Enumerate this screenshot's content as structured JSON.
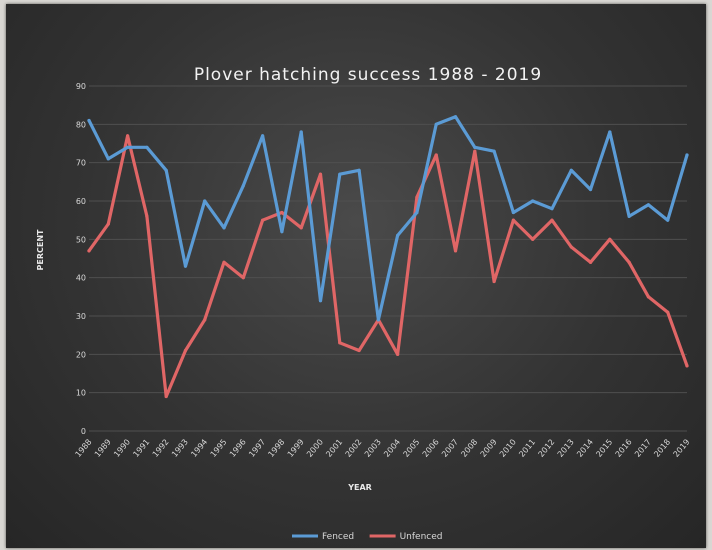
{
  "chart_data": {
    "type": "line",
    "title": "Plover hatching success 1988 - 2019",
    "xlabel": "YEAR",
    "ylabel": "PERCENT",
    "ylim": [
      0,
      90
    ],
    "yticks": [
      0,
      10,
      20,
      30,
      40,
      50,
      60,
      70,
      80,
      90
    ],
    "grid": true,
    "legend_position": "bottom",
    "categories": [
      "1988",
      "1989",
      "1990",
      "1991",
      "1992",
      "1993",
      "1994",
      "1995",
      "1996",
      "1997",
      "1998",
      "1999",
      "2000",
      "2001",
      "2002",
      "2003",
      "2004",
      "2005",
      "2006",
      "2007",
      "2008",
      "2009",
      "2010",
      "2011",
      "2012",
      "2013",
      "2014",
      "2015",
      "2016",
      "2017",
      "2018",
      "2019"
    ],
    "series": [
      {
        "name": "Fenced",
        "color": "#5b9bd5",
        "values": [
          81,
          71,
          74,
          74,
          68,
          43,
          60,
          53,
          64,
          77,
          52,
          78,
          34,
          67,
          68,
          29,
          51,
          57,
          80,
          82,
          74,
          73,
          57,
          60,
          58,
          68,
          63,
          78,
          56,
          59,
          55,
          72
        ]
      },
      {
        "name": "Unfenced",
        "color": "#e06666",
        "values": [
          47,
          54,
          77,
          56,
          9,
          21,
          29,
          44,
          40,
          55,
          57,
          53,
          67,
          23,
          21,
          29,
          20,
          61,
          72,
          47,
          73,
          39,
          55,
          50,
          55,
          48,
          44,
          50,
          44,
          35,
          31,
          17
        ]
      }
    ]
  }
}
